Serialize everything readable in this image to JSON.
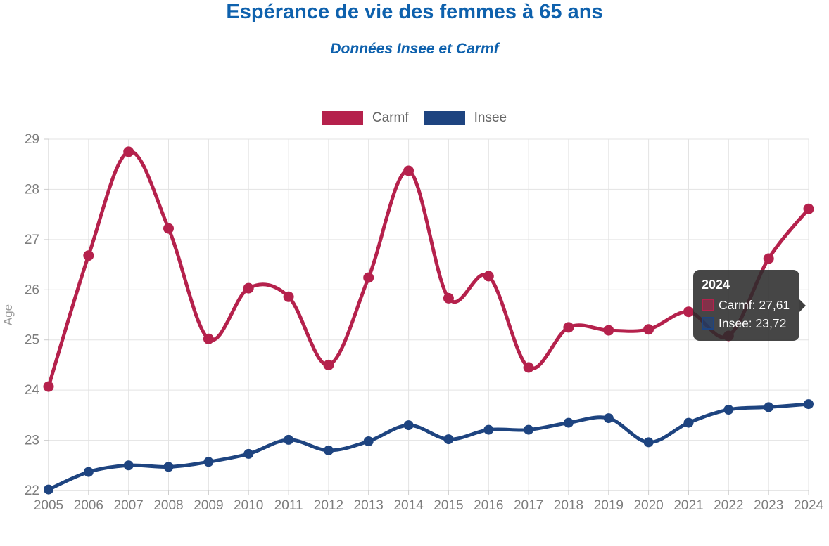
{
  "chart_data": {
    "type": "line",
    "title": "Espérance de vie des femmes à 65 ans",
    "subtitle": "Données Insee et Carmf",
    "xlabel": "",
    "ylabel": "Age",
    "ylim": [
      22,
      29
    ],
    "yticks": [
      22,
      23,
      24,
      25,
      26,
      27,
      28,
      29
    ],
    "grid": true,
    "legend_position": "top",
    "x": [
      2005,
      2006,
      2007,
      2008,
      2009,
      2010,
      2011,
      2012,
      2013,
      2014,
      2015,
      2016,
      2017,
      2018,
      2019,
      2020,
      2021,
      2022,
      2023,
      2024
    ],
    "series": [
      {
        "name": "Carmf",
        "color": "#b5214c",
        "values": [
          24.07,
          26.68,
          28.75,
          27.22,
          25.02,
          26.03,
          25.86,
          24.5,
          26.24,
          28.37,
          25.83,
          26.27,
          24.45,
          25.25,
          25.19,
          25.21,
          25.56,
          25.08,
          26.62,
          27.61
        ]
      },
      {
        "name": "Insee",
        "color": "#1e4480",
        "values": [
          22.02,
          22.37,
          22.5,
          22.47,
          22.57,
          22.73,
          23.01,
          22.8,
          22.98,
          23.3,
          23.02,
          23.21,
          23.21,
          23.35,
          23.44,
          22.96,
          23.35,
          23.61,
          23.66,
          23.72
        ]
      }
    ]
  },
  "tooltip": {
    "title": "2024",
    "rows": [
      {
        "label": "Carmf",
        "value": "27,61",
        "text": "Carmf: 27,61",
        "color": "#b5214c"
      },
      {
        "label": "Insee",
        "value": "23,72",
        "text": "Insee: 23,72",
        "color": "#1e4480"
      }
    ]
  },
  "colors": {
    "title_blue": "#0e61ad",
    "grid_line": "#e3e3e3",
    "axis_line": "#cccccc",
    "axis_label": "#7d7d7d",
    "legend_text": "#666666",
    "tooltip_bg": "#2a2a2a"
  }
}
